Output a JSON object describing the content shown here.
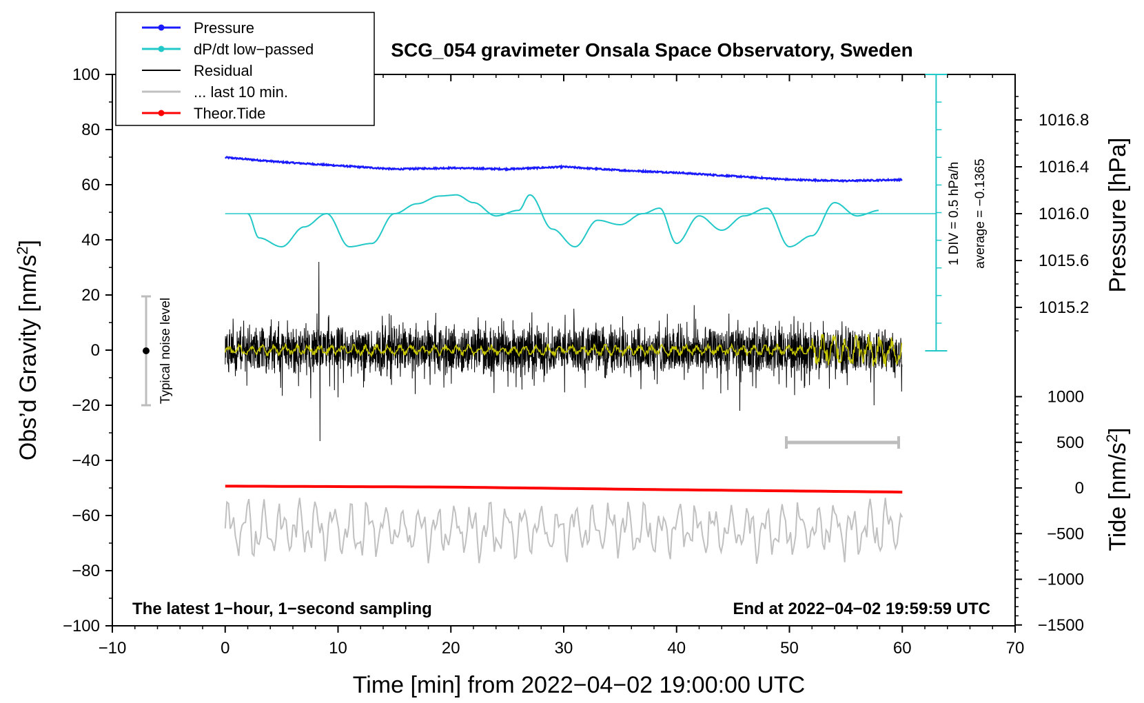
{
  "chart_data": {
    "type": "line",
    "title": "SCG_054 gravimeter Onsala Space Observatory, Sweden",
    "xlabel": "Time [min] from 2022−04−02 19:00:00 UTC",
    "ylabel_left_main": "Obs’d Gravity [nm/s",
    "ylabel_left_sup": "2",
    "ylabel_left_end": "]",
    "ylabel_right_pressure": "Pressure [hPa]",
    "ylabel_right_tide_main": "Tide [nm/s",
    "ylabel_right_tide_sup": "2",
    "ylabel_right_tide_end": "]",
    "xlim": [
      -10,
      70
    ],
    "ylim_left": [
      -100,
      100
    ],
    "x_ticks": [
      "−10",
      "0",
      "10",
      "20",
      "30",
      "40",
      "50",
      "60",
      "70"
    ],
    "y_left_ticks": [
      "100",
      "80",
      "60",
      "40",
      "20",
      "0",
      "−20",
      "−40",
      "−60",
      "−80",
      "−100"
    ],
    "pressure_ticks": [
      "1016.8",
      "1016.4",
      "1016.0",
      "1015.6",
      "1015.2"
    ],
    "tide_ticks": [
      "1000",
      "500",
      "0",
      "−500",
      "−1000",
      "−1500"
    ],
    "legend": [
      {
        "label": "Pressure",
        "color": "#1a1aff",
        "marker": true
      },
      {
        "label": "dP/dt low−passed",
        "color": "#22c8c8",
        "marker": true
      },
      {
        "label": "Residual",
        "color": "#000000",
        "marker": false
      },
      {
        "label": "... last 10 min.",
        "color": "#c0c0c0",
        "marker": false
      },
      {
        "label": "Theor.Tide",
        "color": "#ff0000",
        "marker": true
      }
    ],
    "scale_bar_label": "1 DIV = 0.5 hPa/h",
    "average_label": "average = −0.1365",
    "noise_label": "Typical noise level",
    "footer_left": "The latest 1−hour, 1−second sampling",
    "footer_right": "End at 2022−04−02 19:59:59 UTC",
    "series": [
      {
        "name": "Pressure",
        "unit": "hPa",
        "x": [
          0,
          5,
          10,
          15,
          20,
          25,
          30,
          35,
          40,
          45,
          50,
          55,
          60
        ],
        "values": [
          1016.48,
          1016.44,
          1016.41,
          1016.38,
          1016.39,
          1016.38,
          1016.4,
          1016.37,
          1016.35,
          1016.32,
          1016.29,
          1016.28,
          1016.29
        ]
      },
      {
        "name": "dP/dt low-passed",
        "unit": "hPa/h",
        "x": [
          2,
          3,
          5,
          7,
          9,
          11,
          13,
          15,
          17,
          19,
          20.5,
          22,
          24,
          26,
          27,
          29,
          31,
          33,
          35,
          37,
          38.5,
          40,
          42,
          44,
          46,
          48,
          50,
          52,
          54,
          56,
          58
        ],
        "values": [
          0,
          -0.22,
          -0.3,
          -0.12,
          0.0,
          -0.3,
          -0.27,
          0.0,
          0.09,
          0.16,
          0.17,
          0.1,
          -0.02,
          0.03,
          0.17,
          -0.14,
          -0.3,
          -0.06,
          -0.1,
          0.0,
          0.05,
          -0.27,
          -0.02,
          -0.15,
          -0.02,
          0.05,
          -0.3,
          -0.2,
          0.1,
          -0.02,
          0.03
        ]
      },
      {
        "name": "Residual",
        "unit": "nm/s2",
        "x_range": [
          0,
          60
        ],
        "approx_amplitude": 10,
        "peaks": [
          {
            "x": 8.3,
            "y": 32
          },
          {
            "x": 8.4,
            "y": -33
          },
          {
            "x": 45.6,
            "y": -22
          },
          {
            "x": 57.5,
            "y": -20
          }
        ]
      },
      {
        "name": "Residual low-passed",
        "unit": "nm/s2",
        "x_range": [
          0,
          60
        ],
        "approx_amplitude": 2
      },
      {
        "name": "Theor.Tide",
        "unit": "nm/s2",
        "x": [
          0,
          20,
          40,
          60
        ],
        "values": [
          20,
          10,
          -20,
          -45
        ]
      },
      {
        "name": "... last 10 min.",
        "unit": "nm/s2",
        "x_range": [
          0,
          60
        ],
        "center_y": -65
      }
    ]
  }
}
